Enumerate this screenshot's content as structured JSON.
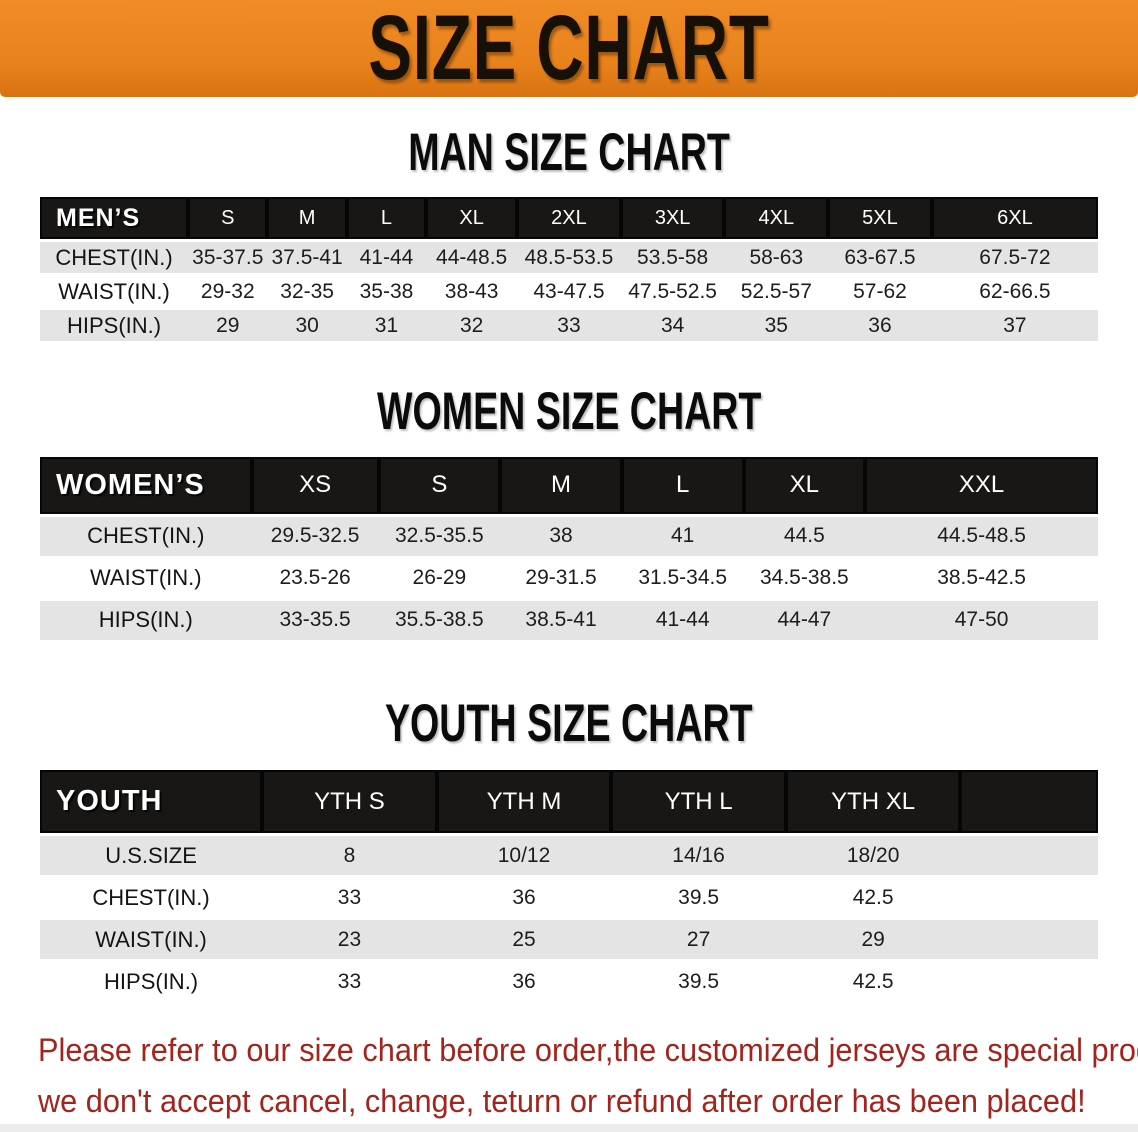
{
  "banner": {
    "title": "SIZE CHART"
  },
  "men": {
    "title": "MAN SIZE CHART",
    "label": "MEN’S",
    "columns": [
      "S",
      "M",
      "L",
      "XL",
      "2XL",
      "3XL",
      "4XL",
      "5XL",
      "6XL"
    ],
    "rows": [
      {
        "label": "CHEST(IN.)",
        "values": [
          "35-37.5",
          "37.5-41",
          "41-44",
          "44-48.5",
          "48.5-53.5",
          "53.5-58",
          "58-63",
          "63-67.5",
          "67.5-72"
        ]
      },
      {
        "label": "WAIST(IN.)",
        "values": [
          "29-32",
          "32-35",
          "35-38",
          "38-43",
          "43-47.5",
          "47.5-52.5",
          "52.5-57",
          "57-62",
          "62-66.5"
        ]
      },
      {
        "label": "HIPS(IN.)",
        "values": [
          "29",
          "30",
          "31",
          "32",
          "33",
          "34",
          "35",
          "36",
          "37"
        ]
      }
    ]
  },
  "women": {
    "title": "WOMEN SIZE CHART",
    "label": "WOMEN’S",
    "columns": [
      "XS",
      "S",
      "M",
      "L",
      "XL",
      "XXL"
    ],
    "rows": [
      {
        "label": "CHEST(IN.)",
        "values": [
          "29.5-32.5",
          "32.5-35.5",
          "38",
          "41",
          "44.5",
          "44.5-48.5"
        ]
      },
      {
        "label": "WAIST(IN.)",
        "values": [
          "23.5-26",
          "26-29",
          "29-31.5",
          "31.5-34.5",
          "34.5-38.5",
          "38.5-42.5"
        ]
      },
      {
        "label": "HIPS(IN.)",
        "values": [
          "33-35.5",
          "35.5-38.5",
          "38.5-41",
          "41-44",
          "44-47",
          "47-50"
        ]
      }
    ]
  },
  "youth": {
    "title": "YOUTH SIZE CHART",
    "label": "YOUTH",
    "columns": [
      "YTH S",
      "YTH M",
      "YTH L",
      "YTH XL"
    ],
    "rows": [
      {
        "label": "U.S.SIZE",
        "values": [
          "8",
          "10/12",
          "14/16",
          "18/20"
        ]
      },
      {
        "label": "CHEST(IN.)",
        "values": [
          "33",
          "36",
          "39.5",
          "42.5"
        ]
      },
      {
        "label": "WAIST(IN.)",
        "values": [
          "23",
          "25",
          "27",
          "29"
        ]
      },
      {
        "label": "HIPS(IN.)",
        "values": [
          "33",
          "36",
          "39.5",
          "42.5"
        ]
      }
    ]
  },
  "disclaimer": {
    "line1": "Please refer to our size chart before order,the customized jerseys are special products,",
    "line2": "we don't accept cancel, change, teturn or refund after order has been placed!"
  },
  "colors": {
    "banner_orange": "#E8821C",
    "header_bar_black": "#181715",
    "row_shade_gray": "#E4E4E4",
    "disclaimer_red": "#A3241D"
  }
}
